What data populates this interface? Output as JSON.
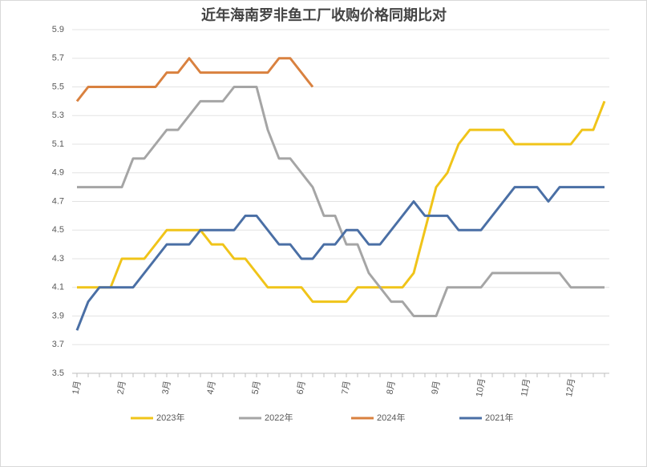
{
  "chart_data": {
    "type": "line",
    "title": "近年海南罗非鱼工厂收购价格同期比对",
    "categories": [
      "1月",
      null,
      null,
      null,
      "2月",
      null,
      null,
      null,
      "3月",
      null,
      null,
      null,
      "4月",
      null,
      null,
      null,
      "5月",
      null,
      null,
      null,
      "6月",
      null,
      null,
      null,
      "7月",
      null,
      null,
      null,
      "8月",
      null,
      null,
      null,
      "9月",
      null,
      null,
      null,
      "10月",
      null,
      null,
      null,
      "11月",
      null,
      null,
      null,
      "12月",
      null,
      null,
      null
    ],
    "ylim": [
      3.5,
      5.9
    ],
    "yticks": [
      3.5,
      3.7,
      3.9,
      4.1,
      4.3,
      4.5,
      4.7,
      4.9,
      5.1,
      5.3,
      5.5,
      5.7,
      5.9
    ],
    "grid": true,
    "legend": "bottom",
    "series": [
      {
        "name": "2023年",
        "color": "#f0c419",
        "values": [
          4.1,
          4.1,
          4.1,
          4.1,
          4.3,
          4.3,
          4.3,
          4.4,
          4.5,
          4.5,
          4.5,
          4.5,
          4.4,
          4.4,
          4.3,
          4.3,
          4.2,
          4.1,
          4.1,
          4.1,
          4.1,
          4.0,
          4.0,
          4.0,
          4.0,
          4.1,
          4.1,
          4.1,
          4.1,
          4.1,
          4.2,
          4.5,
          4.8,
          4.9,
          5.1,
          5.2,
          5.2,
          5.2,
          5.2,
          5.1,
          5.1,
          5.1,
          5.1,
          5.1,
          5.1,
          5.2,
          5.2,
          5.4
        ]
      },
      {
        "name": "2022年",
        "color": "#a5a5a5",
        "values": [
          4.8,
          4.8,
          4.8,
          4.8,
          4.8,
          5.0,
          5.0,
          5.1,
          5.2,
          5.2,
          5.3,
          5.4,
          5.4,
          5.4,
          5.5,
          5.5,
          5.5,
          5.2,
          5.0,
          5.0,
          4.9,
          4.8,
          4.6,
          4.6,
          4.4,
          4.4,
          4.2,
          4.1,
          4.0,
          4.0,
          3.9,
          3.9,
          3.9,
          4.1,
          4.1,
          4.1,
          4.1,
          4.2,
          4.2,
          4.2,
          4.2,
          4.2,
          4.2,
          4.2,
          4.1,
          4.1,
          4.1,
          4.1
        ]
      },
      {
        "name": "2024年",
        "color": "#d9813f",
        "values": [
          5.4,
          5.5,
          5.5,
          5.5,
          5.5,
          5.5,
          5.5,
          5.5,
          5.6,
          5.6,
          5.7,
          5.6,
          5.6,
          5.6,
          5.6,
          5.6,
          5.6,
          5.6,
          5.7,
          5.7,
          5.6,
          5.5,
          null,
          null,
          null,
          null,
          null,
          null,
          null,
          null,
          null,
          null,
          null,
          null,
          null,
          null,
          null,
          null,
          null,
          null,
          null,
          null,
          null,
          null,
          null,
          null,
          null,
          null
        ]
      },
      {
        "name": "2021年",
        "color": "#4a6fa5",
        "values": [
          3.8,
          4.0,
          4.1,
          4.1,
          4.1,
          4.1,
          4.2,
          4.3,
          4.4,
          4.4,
          4.4,
          4.5,
          4.5,
          4.5,
          4.5,
          4.6,
          4.6,
          4.5,
          4.4,
          4.4,
          4.3,
          4.3,
          4.4,
          4.4,
          4.5,
          4.5,
          4.4,
          4.4,
          4.5,
          4.6,
          4.7,
          4.6,
          4.6,
          4.6,
          4.5,
          4.5,
          4.5,
          4.6,
          4.7,
          4.8,
          4.8,
          4.8,
          4.7,
          4.8,
          4.8,
          4.8,
          4.8,
          4.8
        ]
      }
    ]
  }
}
